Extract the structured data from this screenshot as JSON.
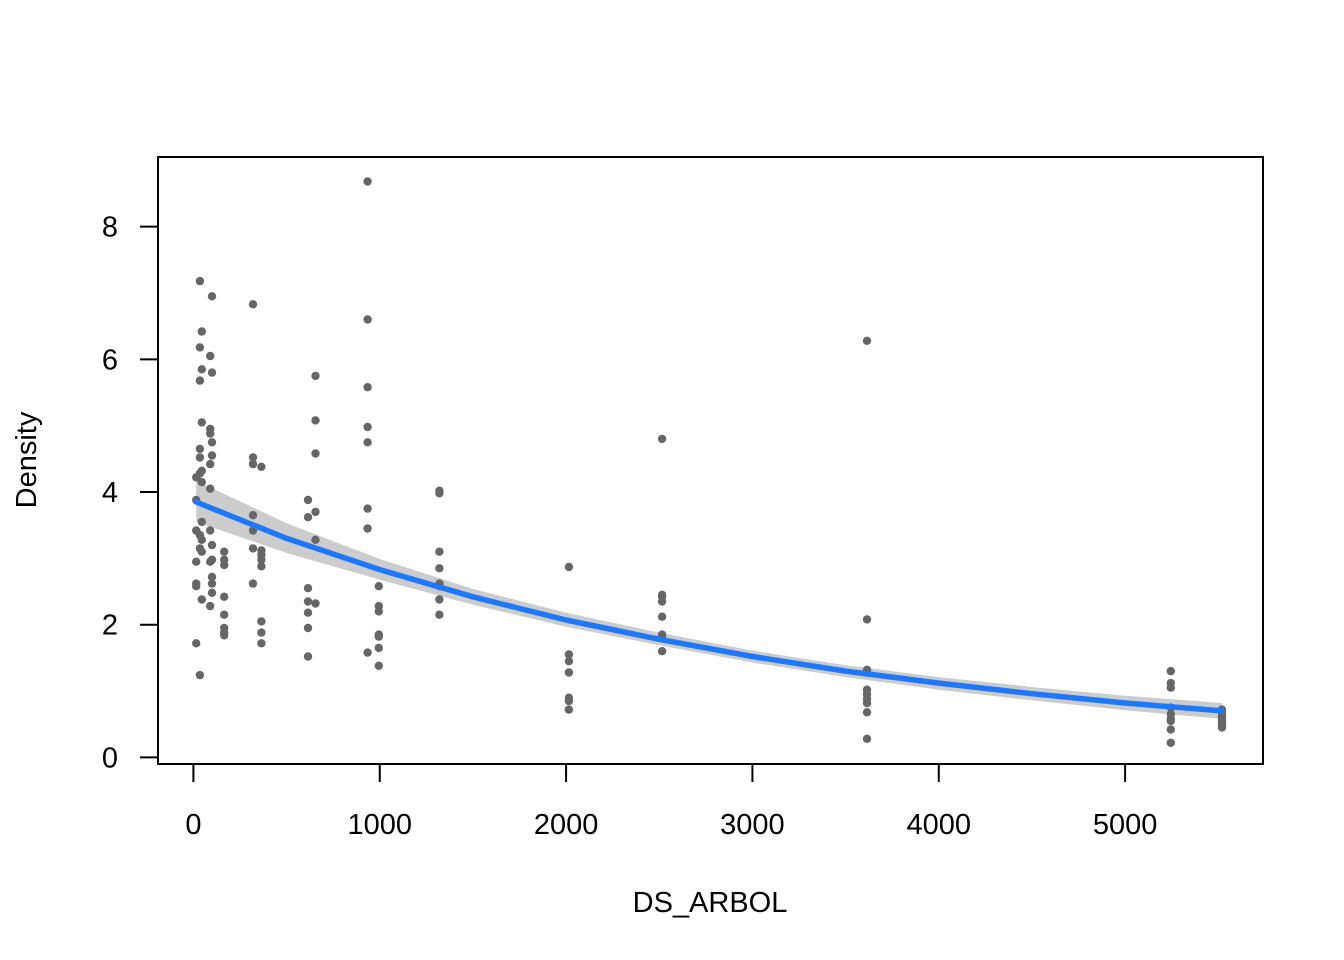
{
  "chart_data": {
    "type": "scatter",
    "title": "",
    "xlabel": "DS_ARBOL",
    "ylabel": "Density",
    "xlim": [
      -190,
      5740
    ],
    "ylim": [
      -0.1,
      9.05
    ],
    "x_ticks": [
      0,
      1000,
      2000,
      3000,
      4000,
      5000
    ],
    "y_ticks": [
      0,
      2,
      4,
      6,
      8
    ],
    "grid": false,
    "legend": "none",
    "colors": {
      "points": "#666666",
      "fit": "#1e78ff",
      "band": "#cccccc",
      "axis": "#000000"
    },
    "points": [
      [
        15,
        1.72
      ],
      [
        15,
        2.58
      ],
      [
        15,
        2.62
      ],
      [
        15,
        2.95
      ],
      [
        15,
        3.42
      ],
      [
        15,
        4.22
      ],
      [
        15,
        3.88
      ],
      [
        35,
        7.18
      ],
      [
        35,
        1.24
      ],
      [
        35,
        6.18
      ],
      [
        35,
        5.68
      ],
      [
        35,
        4.65
      ],
      [
        35,
        3.15
      ],
      [
        35,
        3.35
      ],
      [
        35,
        4.52
      ],
      [
        35,
        4.28
      ],
      [
        45,
        6.42
      ],
      [
        45,
        5.85
      ],
      [
        45,
        5.05
      ],
      [
        45,
        4.32
      ],
      [
        45,
        4.15
      ],
      [
        45,
        3.55
      ],
      [
        45,
        3.1
      ],
      [
        45,
        2.38
      ],
      [
        45,
        3.28
      ],
      [
        90,
        6.05
      ],
      [
        90,
        4.95
      ],
      [
        90,
        4.88
      ],
      [
        90,
        4.42
      ],
      [
        90,
        4.05
      ],
      [
        90,
        3.42
      ],
      [
        90,
        2.95
      ],
      [
        90,
        2.28
      ],
      [
        100,
        6.95
      ],
      [
        100,
        5.8
      ],
      [
        100,
        4.75
      ],
      [
        100,
        4.55
      ],
      [
        100,
        3.2
      ],
      [
        100,
        2.98
      ],
      [
        100,
        2.72
      ],
      [
        100,
        2.62
      ],
      [
        100,
        2.48
      ],
      [
        165,
        3.1
      ],
      [
        165,
        2.98
      ],
      [
        165,
        2.9
      ],
      [
        165,
        2.42
      ],
      [
        165,
        2.15
      ],
      [
        165,
        1.95
      ],
      [
        165,
        1.88
      ],
      [
        165,
        1.84
      ],
      [
        320,
        6.83
      ],
      [
        320,
        4.52
      ],
      [
        320,
        4.42
      ],
      [
        320,
        3.65
      ],
      [
        320,
        3.42
      ],
      [
        320,
        3.15
      ],
      [
        320,
        2.62
      ],
      [
        365,
        4.38
      ],
      [
        365,
        3.12
      ],
      [
        365,
        3.05
      ],
      [
        365,
        2.98
      ],
      [
        365,
        2.88
      ],
      [
        365,
        2.05
      ],
      [
        365,
        1.88
      ],
      [
        365,
        1.72
      ],
      [
        615,
        3.88
      ],
      [
        615,
        3.62
      ],
      [
        615,
        2.55
      ],
      [
        615,
        2.35
      ],
      [
        615,
        2.18
      ],
      [
        615,
        1.95
      ],
      [
        615,
        1.52
      ],
      [
        655,
        5.75
      ],
      [
        655,
        5.08
      ],
      [
        655,
        4.58
      ],
      [
        655,
        3.7
      ],
      [
        655,
        3.28
      ],
      [
        655,
        2.32
      ],
      [
        935,
        8.68
      ],
      [
        935,
        6.6
      ],
      [
        935,
        5.58
      ],
      [
        935,
        4.98
      ],
      [
        935,
        4.75
      ],
      [
        935,
        3.75
      ],
      [
        935,
        3.45
      ],
      [
        935,
        1.58
      ],
      [
        995,
        2.58
      ],
      [
        995,
        2.28
      ],
      [
        995,
        2.2
      ],
      [
        995,
        1.85
      ],
      [
        995,
        1.82
      ],
      [
        995,
        1.65
      ],
      [
        995,
        1.38
      ],
      [
        1320,
        4.02
      ],
      [
        1320,
        3.98
      ],
      [
        1320,
        3.1
      ],
      [
        1320,
        2.85
      ],
      [
        1320,
        2.62
      ],
      [
        1320,
        2.58
      ],
      [
        1320,
        2.38
      ],
      [
        1320,
        2.15
      ],
      [
        2015,
        2.87
      ],
      [
        2015,
        1.55
      ],
      [
        2015,
        1.45
      ],
      [
        2015,
        1.28
      ],
      [
        2015,
        0.9
      ],
      [
        2015,
        0.85
      ],
      [
        2015,
        0.72
      ],
      [
        2515,
        4.8
      ],
      [
        2515,
        2.45
      ],
      [
        2515,
        2.42
      ],
      [
        2515,
        2.35
      ],
      [
        2515,
        2.12
      ],
      [
        2515,
        1.85
      ],
      [
        2515,
        1.82
      ],
      [
        2515,
        1.6
      ],
      [
        3615,
        6.28
      ],
      [
        3615,
        2.08
      ],
      [
        3615,
        1.32
      ],
      [
        3615,
        1.28
      ],
      [
        3615,
        1.02
      ],
      [
        3615,
        0.95
      ],
      [
        3615,
        0.88
      ],
      [
        3615,
        0.82
      ],
      [
        3615,
        0.68
      ],
      [
        3615,
        0.28
      ],
      [
        5245,
        1.3
      ],
      [
        5245,
        1.12
      ],
      [
        5245,
        1.05
      ],
      [
        5245,
        0.75
      ],
      [
        5245,
        0.65
      ],
      [
        5245,
        0.58
      ],
      [
        5245,
        0.55
      ],
      [
        5245,
        0.42
      ],
      [
        5245,
        0.22
      ],
      [
        5520,
        0.72
      ],
      [
        5520,
        0.68
      ],
      [
        5520,
        0.62
      ],
      [
        5520,
        0.58
      ],
      [
        5520,
        0.55
      ],
      [
        5520,
        0.5
      ],
      [
        5520,
        0.48
      ],
      [
        5520,
        0.45
      ]
    ],
    "fit_line": {
      "x": [
        15,
        500,
        1000,
        1500,
        2000,
        2500,
        3000,
        3500,
        4000,
        4500,
        5000,
        5520
      ],
      "y": [
        3.85,
        3.3,
        2.83,
        2.42,
        2.07,
        1.78,
        1.52,
        1.3,
        1.12,
        0.96,
        0.82,
        0.7
      ],
      "lower": [
        3.55,
        3.08,
        2.68,
        2.3,
        1.97,
        1.69,
        1.43,
        1.21,
        1.02,
        0.86,
        0.71,
        0.58
      ],
      "upper": [
        4.17,
        3.53,
        2.99,
        2.54,
        2.18,
        1.88,
        1.61,
        1.39,
        1.21,
        1.06,
        0.93,
        0.82
      ]
    }
  }
}
